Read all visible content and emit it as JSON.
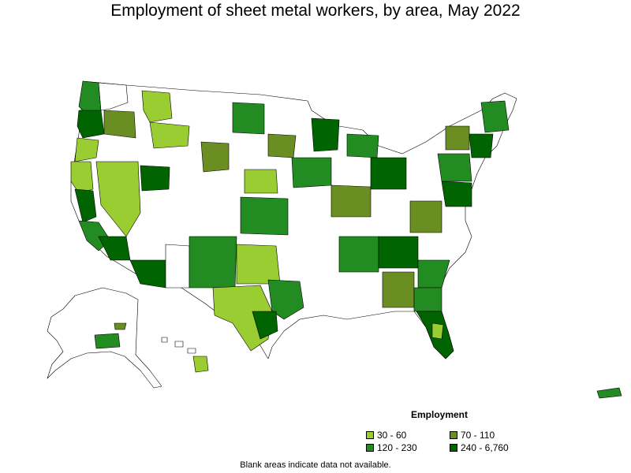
{
  "title": "Employment of sheet metal workers, by area, May 2022",
  "legend": {
    "title": "Employment",
    "items": [
      {
        "label": "30 - 60",
        "color": "#9acd32"
      },
      {
        "label": "70 - 110",
        "color": "#6b8e23"
      },
      {
        "label": "120 - 230",
        "color": "#228b22"
      },
      {
        "label": "240 - 6,760",
        "color": "#006400"
      }
    ]
  },
  "note": "Blank areas indicate data not available.",
  "colors": {
    "none": "#ffffff",
    "border": "#000000"
  }
}
